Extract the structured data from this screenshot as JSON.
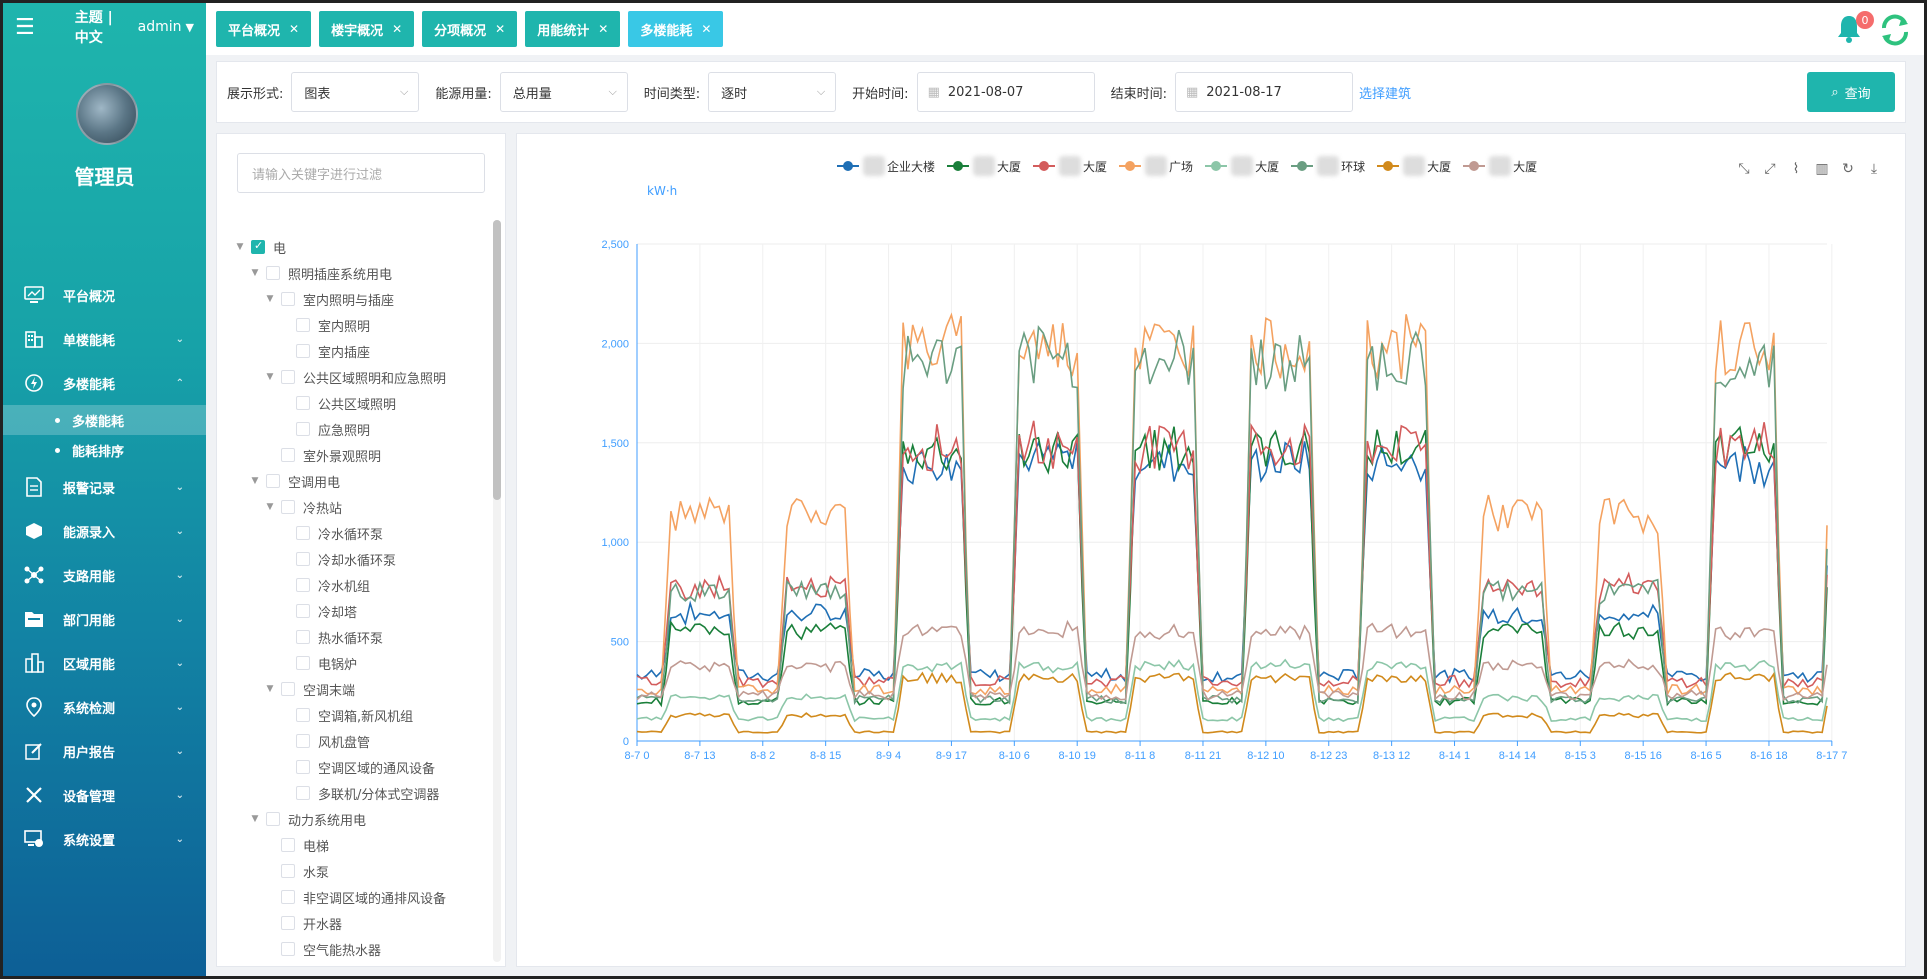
{
  "sidebar": {
    "theme_label": "主题 | 中文",
    "user_label": "admin",
    "username": "管理员",
    "menu": [
      {
        "label": "平台概况",
        "icon": "monitor-icon",
        "has_arrow": false
      },
      {
        "label": "单楼能耗",
        "icon": "building-icon",
        "has_arrow": true
      },
      {
        "label": "多楼能耗",
        "icon": "lightning-icon",
        "has_arrow": true,
        "open": true
      },
      {
        "label": "报警记录",
        "icon": "document-icon",
        "has_arrow": true
      },
      {
        "label": "能源录入",
        "icon": "cube-icon",
        "has_arrow": true
      },
      {
        "label": "支路用能",
        "icon": "branch-icon",
        "has_arrow": true
      },
      {
        "label": "部门用能",
        "icon": "folder-icon",
        "has_arrow": true
      },
      {
        "label": "区域用能",
        "icon": "region-icon",
        "has_arrow": true
      },
      {
        "label": "系统检测",
        "icon": "location-icon",
        "has_arrow": true
      },
      {
        "label": "用户报告",
        "icon": "edit-icon",
        "has_arrow": true
      },
      {
        "label": "设备管理",
        "icon": "tools-icon",
        "has_arrow": true
      },
      {
        "label": "系统设置",
        "icon": "settings-screen-icon",
        "has_arrow": true
      }
    ],
    "submenu": [
      {
        "label": "多楼能耗",
        "active": true
      },
      {
        "label": "能耗排序",
        "active": false
      }
    ]
  },
  "tabs": [
    {
      "label": "平台概况",
      "active": false
    },
    {
      "label": "楼宇概况",
      "active": false
    },
    {
      "label": "分项概况",
      "active": false
    },
    {
      "label": "用能统计",
      "active": false
    },
    {
      "label": "多楼能耗",
      "active": true
    }
  ],
  "notifications": {
    "count": "0"
  },
  "filters": {
    "display_label": "展示形式:",
    "display_value": "图表",
    "usage_label": "能源用量:",
    "usage_value": "总用量",
    "timetype_label": "时间类型:",
    "timetype_value": "逐时",
    "start_label": "开始时间:",
    "start_value": "2021-08-07",
    "end_label": "结束时间:",
    "end_value": "2021-08-17",
    "pick_building": "选择建筑",
    "query": "查询"
  },
  "tree": {
    "filter_placeholder": "请输入关键字进行过滤",
    "nodes": [
      {
        "label": "电",
        "level": 0,
        "expandable": true,
        "checked": true
      },
      {
        "label": "照明插座系统用电",
        "level": 1,
        "expandable": true,
        "checked": false
      },
      {
        "label": "室内照明与插座",
        "level": 2,
        "expandable": true,
        "checked": false
      },
      {
        "label": "室内照明",
        "level": 3,
        "expandable": false,
        "checked": false
      },
      {
        "label": "室内插座",
        "level": 3,
        "expandable": false,
        "checked": false
      },
      {
        "label": "公共区域照明和应急照明",
        "level": 2,
        "expandable": true,
        "checked": false
      },
      {
        "label": "公共区域照明",
        "level": 3,
        "expandable": false,
        "checked": false
      },
      {
        "label": "应急照明",
        "level": 3,
        "expandable": false,
        "checked": false
      },
      {
        "label": "室外景观照明",
        "level": 2,
        "expandable": false,
        "checked": false
      },
      {
        "label": "空调用电",
        "level": 1,
        "expandable": true,
        "checked": false
      },
      {
        "label": "冷热站",
        "level": 2,
        "expandable": true,
        "checked": false
      },
      {
        "label": "冷水循环泵",
        "level": 3,
        "expandable": false,
        "checked": false
      },
      {
        "label": "冷却水循环泵",
        "level": 3,
        "expandable": false,
        "checked": false
      },
      {
        "label": "冷水机组",
        "level": 3,
        "expandable": false,
        "checked": false
      },
      {
        "label": "冷却塔",
        "level": 3,
        "expandable": false,
        "checked": false
      },
      {
        "label": "热水循环泵",
        "level": 3,
        "expandable": false,
        "checked": false
      },
      {
        "label": "电锅炉",
        "level": 3,
        "expandable": false,
        "checked": false
      },
      {
        "label": "空调末端",
        "level": 2,
        "expandable": true,
        "checked": false
      },
      {
        "label": "空调箱,新风机组",
        "level": 3,
        "expandable": false,
        "checked": false
      },
      {
        "label": "风机盘管",
        "level": 3,
        "expandable": false,
        "checked": false
      },
      {
        "label": "空调区域的通风设备",
        "level": 3,
        "expandable": false,
        "checked": false
      },
      {
        "label": "多联机/分体式空调器",
        "level": 3,
        "expandable": false,
        "checked": false
      },
      {
        "label": "动力系统用电",
        "level": 1,
        "expandable": true,
        "checked": false
      },
      {
        "label": "电梯",
        "level": 2,
        "expandable": false,
        "checked": false
      },
      {
        "label": "水泵",
        "level": 2,
        "expandable": false,
        "checked": false
      },
      {
        "label": "非空调区域的通排风设备",
        "level": 2,
        "expandable": false,
        "checked": false
      },
      {
        "label": "开水器",
        "level": 2,
        "expandable": false,
        "checked": false
      },
      {
        "label": "空气能热水器",
        "level": 2,
        "expandable": false,
        "checked": false
      }
    ]
  },
  "chart_data": {
    "type": "line",
    "ylabel": "kW·h",
    "ylim": [
      0,
      2500
    ],
    "yticks": [
      "0",
      "500",
      "1,000",
      "1,500",
      "2,000",
      "2,500"
    ],
    "x_tick_labels": [
      "8-7 0",
      "8-7 13",
      "8-8 2",
      "8-8 15",
      "8-9 4",
      "8-9 17",
      "8-10 6",
      "8-10 19",
      "8-11 8",
      "8-11 21",
      "8-12 10",
      "8-12 23",
      "8-13 12",
      "8-14 1",
      "8-14 14",
      "8-15 3",
      "8-15 16",
      "8-16 5",
      "8-16 18",
      "8-17 7"
    ],
    "hours": 247,
    "grid": true,
    "legend_position": "top",
    "series": [
      {
        "name": "企业大楼",
        "color": "#1f6fb5",
        "base": 330,
        "peak": 1420,
        "weekend_peak": 640
      },
      {
        "name": "大厦",
        "color": "#1a7f3a",
        "base": 200,
        "peak": 1480,
        "weekend_peak": 560
      },
      {
        "name": "大厦",
        "color": "#d35c5c",
        "base": 300,
        "peak": 1500,
        "weekend_peak": 780
      },
      {
        "name": "广场",
        "color": "#f4a261",
        "base": 260,
        "peak": 2000,
        "weekend_peak": 1150
      },
      {
        "name": "大厦",
        "color": "#8cc6a8",
        "base": 110,
        "peak": 380,
        "weekend_peak": 220
      },
      {
        "name": "环球",
        "color": "#6a9e82",
        "base": 210,
        "peak": 1930,
        "weekend_peak": 760
      },
      {
        "name": "大厦",
        "color": "#d18a1c",
        "base": 45,
        "peak": 320,
        "weekend_peak": 130
      },
      {
        "name": "大厦",
        "color": "#c09a92",
        "base": 230,
        "peak": 560,
        "weekend_peak": 380
      }
    ]
  }
}
